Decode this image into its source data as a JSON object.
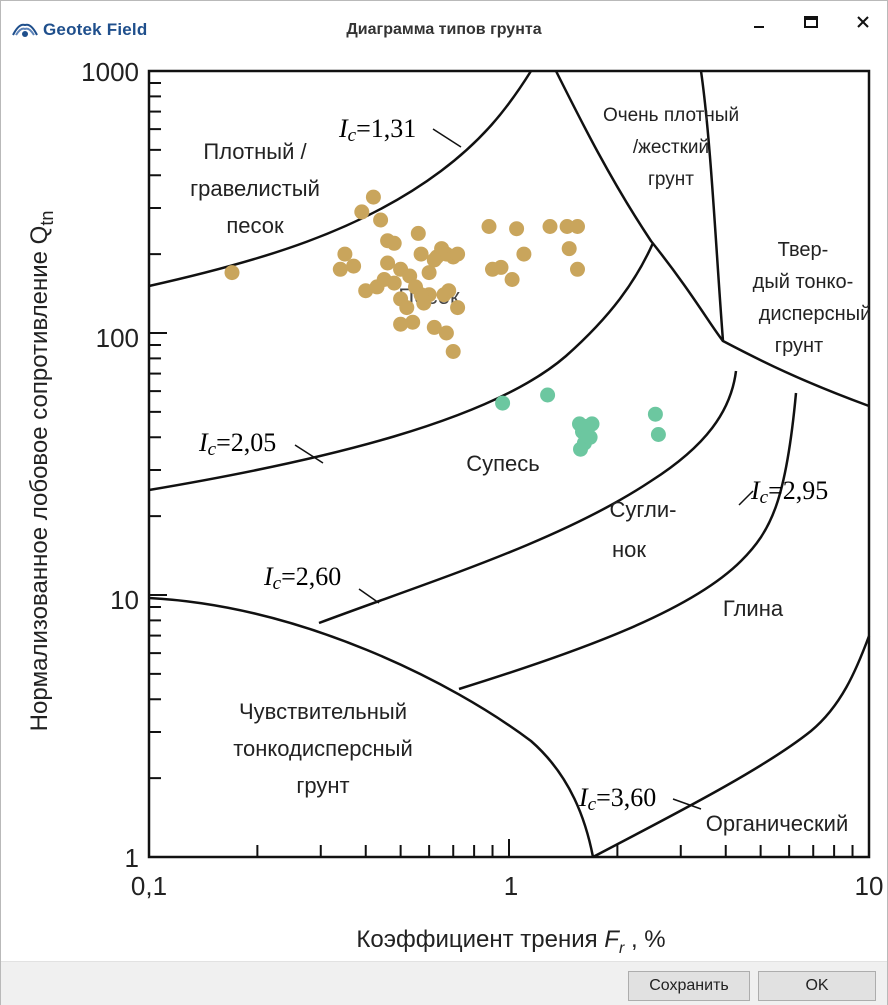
{
  "window": {
    "app_name": "Geotek Field",
    "title": "Диаграмма типов грунта",
    "minimize_icon": "minimize-icon",
    "maximize_icon": "maximize-icon",
    "close_icon": "close-icon"
  },
  "footer": {
    "save_label": "Сохранить",
    "ok_label": "OK"
  },
  "chart_data": {
    "type": "scatter",
    "xlabel_main": "Коэффициент трения ",
    "xlabel_var": "F",
    "xlabel_sub": "r",
    "xlabel_unit": " , %",
    "ylabel_main": "Нормализованное лобовое сопротивление Q",
    "ylabel_sub": "tn",
    "x_scale": "log",
    "y_scale": "log",
    "xlim": [
      0.1,
      10
    ],
    "ylim": [
      1,
      1000
    ],
    "x_ticks": [
      "0,1",
      "1",
      "10"
    ],
    "y_ticks": [
      "1",
      "10",
      "100",
      "1000"
    ],
    "regions": [
      {
        "lines": [
          "Плотный /",
          "гравелистый",
          "песок"
        ]
      },
      {
        "lines": [
          "Очень плотный",
          "/жесткий",
          "грунт"
        ]
      },
      {
        "lines": [
          "Твер-",
          "дый тонко-",
          "дисперсный",
          "грунт"
        ]
      },
      {
        "lines": [
          "Песок"
        ]
      },
      {
        "lines": [
          "Супесь"
        ]
      },
      {
        "lines": [
          "Сугли-",
          "нок"
        ]
      },
      {
        "lines": [
          "Глина"
        ]
      },
      {
        "lines": [
          "Чувствительный",
          "тонкодисперсный",
          "грунт"
        ]
      },
      {
        "lines": [
          "Органический"
        ]
      }
    ],
    "ic_labels": [
      "1,31",
      "2,05",
      "2,60",
      "2,95",
      "3,60"
    ],
    "ic_prefix": "I",
    "ic_sub": "c",
    "ic_eq": "=",
    "series": [
      {
        "color": "#c9a55c",
        "points": [
          [
            0.17,
            170
          ],
          [
            0.35,
            200
          ],
          [
            0.34,
            175
          ],
          [
            0.37,
            180
          ],
          [
            0.39,
            290
          ],
          [
            0.42,
            330
          ],
          [
            0.44,
            270
          ],
          [
            0.46,
            225
          ],
          [
            0.48,
            220
          ],
          [
            0.43,
            150
          ],
          [
            0.45,
            160
          ],
          [
            0.5,
            175
          ],
          [
            0.53,
            165
          ],
          [
            0.56,
            240
          ],
          [
            0.57,
            200
          ],
          [
            0.6,
            170
          ],
          [
            0.63,
            195
          ],
          [
            0.65,
            210
          ],
          [
            0.67,
            200
          ],
          [
            0.7,
            195
          ],
          [
            0.72,
            200
          ],
          [
            0.5,
            135
          ],
          [
            0.52,
            125
          ],
          [
            0.55,
            150
          ],
          [
            0.58,
            130
          ],
          [
            0.6,
            140
          ],
          [
            0.54,
            110
          ],
          [
            0.5,
            108
          ],
          [
            0.62,
            105
          ],
          [
            0.67,
            100
          ],
          [
            0.7,
            85
          ],
          [
            0.72,
            125
          ],
          [
            0.68,
            145
          ],
          [
            0.4,
            145
          ],
          [
            0.48,
            155
          ],
          [
            0.46,
            185
          ],
          [
            0.62,
            190
          ],
          [
            0.57,
            140
          ],
          [
            0.66,
            140
          ],
          [
            0.88,
            255
          ],
          [
            1.05,
            250
          ],
          [
            1.3,
            255
          ],
          [
            1.55,
            255
          ],
          [
            1.45,
            255
          ],
          [
            1.47,
            210
          ],
          [
            1.55,
            175
          ],
          [
            0.9,
            175
          ],
          [
            0.95,
            178
          ],
          [
            1.02,
            160
          ],
          [
            1.1,
            200
          ]
        ]
      },
      {
        "color": "#6cc7a0",
        "points": [
          [
            0.96,
            54
          ],
          [
            1.28,
            58
          ],
          [
            1.57,
            45
          ],
          [
            1.6,
            42
          ],
          [
            1.62,
            38
          ],
          [
            1.65,
            44
          ],
          [
            1.68,
            40
          ],
          [
            1.58,
            36
          ],
          [
            1.7,
            45
          ],
          [
            2.55,
            49
          ],
          [
            2.6,
            41
          ]
        ]
      }
    ]
  }
}
